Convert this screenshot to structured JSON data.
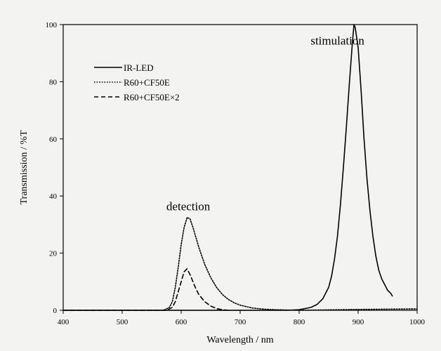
{
  "chart_data": {
    "type": "line",
    "title": "",
    "xlabel": "Wavelength / nm",
    "ylabel": "Transmission / %T",
    "xlim": [
      400,
      1000
    ],
    "ylim": [
      0,
      100
    ],
    "xticks": [
      400,
      500,
      600,
      700,
      800,
      900,
      1000
    ],
    "yticks": [
      0,
      20,
      40,
      60,
      80,
      100
    ],
    "grid": false,
    "legend": {
      "placement": "top-left",
      "box": false
    },
    "annotations": [
      {
        "text": "stimulation",
        "x": 865,
        "y": 93
      },
      {
        "text": "detection",
        "x": 612,
        "y": 35
      }
    ],
    "series": [
      {
        "name": "IR-LED",
        "style": "solid",
        "x": [
          400,
          700,
          780,
          800,
          820,
          830,
          840,
          850,
          855,
          860,
          865,
          870,
          875,
          880,
          885,
          890,
          893,
          895,
          900,
          905,
          910,
          915,
          920,
          925,
          930,
          935,
          940,
          945,
          950,
          955,
          958
        ],
        "y": [
          0,
          0,
          0,
          0.2,
          1,
          2,
          4,
          8,
          12,
          18,
          26,
          37,
          50,
          64,
          79,
          93,
          100,
          99,
          92,
          77,
          60,
          46,
          35,
          26,
          19,
          14,
          11,
          9,
          7,
          6,
          5
        ]
      },
      {
        "name": "R60+CF50E",
        "style": "dotted",
        "x": [
          400,
          570,
          580,
          585,
          590,
          595,
          600,
          605,
          610,
          615,
          620,
          625,
          630,
          640,
          650,
          660,
          670,
          680,
          690,
          700,
          720,
          740,
          760,
          780,
          800,
          900,
          1000
        ],
        "y": [
          0,
          0,
          1,
          3,
          8,
          15,
          23,
          29,
          32.5,
          32,
          29,
          25.5,
          22,
          16,
          11.5,
          8,
          5.5,
          3.8,
          2.6,
          1.8,
          0.8,
          0.4,
          0.2,
          0.1,
          0,
          0.3,
          0.5
        ]
      },
      {
        "name": "R60+CF50E×2",
        "style": "dashed",
        "x": [
          400,
          575,
          585,
          590,
          595,
          600,
          605,
          610,
          615,
          620,
          625,
          630,
          640,
          650,
          660,
          670,
          680
        ],
        "y": [
          0,
          0,
          1,
          3,
          6.5,
          10,
          13.5,
          14.5,
          12.5,
          10,
          7.5,
          5.5,
          3,
          1.5,
          0.6,
          0.2,
          0
        ]
      }
    ]
  }
}
